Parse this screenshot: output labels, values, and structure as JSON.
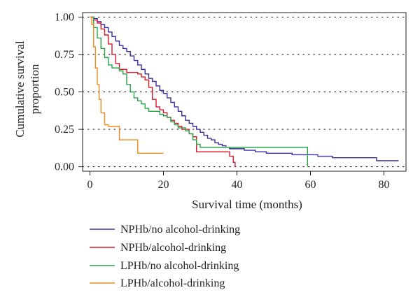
{
  "chart_data": {
    "type": "line",
    "subtype": "step",
    "xlabel": "Survival time (months)",
    "ylabel_lines": [
      "Cumulative survival",
      "proportion"
    ],
    "xlim": [
      -2,
      86
    ],
    "ylim": [
      -0.03,
      1.03
    ],
    "x_ticks": [
      0,
      20,
      40,
      60,
      80
    ],
    "x_tick_labels": [
      "0",
      "20",
      "40",
      "60",
      "80"
    ],
    "y_ticks": [
      0,
      0.25,
      0.5,
      0.75,
      1.0
    ],
    "y_tick_labels": [
      "0.00",
      "0.25",
      "0.50",
      "0.75",
      "1.00"
    ],
    "grid": "horizontal dotted",
    "legend_position": "bottom-left",
    "series": [
      {
        "name": "NPHb/no alcohol-drinking",
        "color": "#3a2fa0",
        "points": [
          [
            0,
            1.0
          ],
          [
            1,
            0.99
          ],
          [
            2,
            0.97
          ],
          [
            3,
            0.95
          ],
          [
            4,
            0.93
          ],
          [
            5,
            0.9
          ],
          [
            6,
            0.87
          ],
          [
            7,
            0.84
          ],
          [
            8,
            0.81
          ],
          [
            9,
            0.79
          ],
          [
            10,
            0.77
          ],
          [
            11,
            0.74
          ],
          [
            12,
            0.71
          ],
          [
            13,
            0.68
          ],
          [
            14,
            0.65
          ],
          [
            15,
            0.62
          ],
          [
            16,
            0.59
          ],
          [
            17,
            0.57
          ],
          [
            18,
            0.54
          ],
          [
            19,
            0.51
          ],
          [
            20,
            0.49
          ],
          [
            21,
            0.46
          ],
          [
            22,
            0.43
          ],
          [
            23,
            0.4
          ],
          [
            24,
            0.37
          ],
          [
            25,
            0.34
          ],
          [
            26,
            0.31
          ],
          [
            27,
            0.29
          ],
          [
            28,
            0.27
          ],
          [
            29,
            0.25
          ],
          [
            30,
            0.23
          ],
          [
            31,
            0.21
          ],
          [
            32,
            0.19
          ],
          [
            33,
            0.18
          ],
          [
            34,
            0.16
          ],
          [
            35,
            0.15
          ],
          [
            36,
            0.14
          ],
          [
            37,
            0.13
          ],
          [
            38,
            0.12
          ],
          [
            42,
            0.11
          ],
          [
            45,
            0.1
          ],
          [
            48,
            0.09
          ],
          [
            55,
            0.08
          ],
          [
            62,
            0.07
          ],
          [
            66,
            0.06
          ],
          [
            78,
            0.04
          ],
          [
            84,
            0.04
          ]
        ]
      },
      {
        "name": "NPHb/alcohol-drinking",
        "color": "#d7182a",
        "points": [
          [
            0,
            1.0
          ],
          [
            1,
            0.98
          ],
          [
            2,
            0.96
          ],
          [
            3,
            0.92
          ],
          [
            4,
            0.88
          ],
          [
            5,
            0.82
          ],
          [
            6,
            0.75
          ],
          [
            7,
            0.69
          ],
          [
            8,
            0.65
          ],
          [
            10,
            0.63
          ],
          [
            11,
            0.63
          ],
          [
            13,
            0.62
          ],
          [
            14,
            0.6
          ],
          [
            15,
            0.58
          ],
          [
            16,
            0.53
          ],
          [
            17,
            0.45
          ],
          [
            18,
            0.4
          ],
          [
            19,
            0.38
          ],
          [
            20,
            0.36
          ],
          [
            21,
            0.33
          ],
          [
            22,
            0.31
          ],
          [
            23,
            0.29
          ],
          [
            24,
            0.27
          ],
          [
            25,
            0.25
          ],
          [
            27,
            0.22
          ],
          [
            28,
            0.2
          ],
          [
            29,
            0.1
          ],
          [
            31,
            0.1
          ],
          [
            38,
            0.07
          ],
          [
            39,
            0.03
          ],
          [
            39.5,
            0.0
          ]
        ]
      },
      {
        "name": "LPHb/no alcohol-drinking",
        "color": "#2aa44a",
        "points": [
          [
            0,
            1.0
          ],
          [
            1,
            0.93
          ],
          [
            2,
            0.86
          ],
          [
            3,
            0.79
          ],
          [
            4,
            0.73
          ],
          [
            5,
            0.68
          ],
          [
            6,
            0.66
          ],
          [
            7,
            0.66
          ],
          [
            8,
            0.64
          ],
          [
            9,
            0.62
          ],
          [
            10,
            0.55
          ],
          [
            11,
            0.5
          ],
          [
            12,
            0.46
          ],
          [
            13,
            0.44
          ],
          [
            14,
            0.42
          ],
          [
            15,
            0.39
          ],
          [
            16,
            0.37
          ],
          [
            18,
            0.37
          ],
          [
            19,
            0.35
          ],
          [
            20,
            0.34
          ],
          [
            21,
            0.33
          ],
          [
            22,
            0.3
          ],
          [
            23,
            0.28
          ],
          [
            24,
            0.26
          ],
          [
            26,
            0.24
          ],
          [
            27,
            0.22
          ],
          [
            28,
            0.18
          ],
          [
            29,
            0.15
          ],
          [
            30,
            0.13
          ],
          [
            59,
            0.13
          ],
          [
            59.2,
            0.0
          ]
        ]
      },
      {
        "name": "LPHb/alcohol-drinking",
        "color": "#f08a1c",
        "points": [
          [
            0,
            1.0
          ],
          [
            0.5,
            0.95
          ],
          [
            1,
            0.8
          ],
          [
            1.5,
            0.66
          ],
          [
            2,
            0.55
          ],
          [
            2.5,
            0.45
          ],
          [
            3,
            0.36
          ],
          [
            4,
            0.28
          ],
          [
            5,
            0.27
          ],
          [
            7,
            0.27
          ],
          [
            8,
            0.18
          ],
          [
            10,
            0.18
          ],
          [
            12,
            0.18
          ],
          [
            13,
            0.09
          ],
          [
            20,
            0.09
          ]
        ]
      }
    ]
  }
}
